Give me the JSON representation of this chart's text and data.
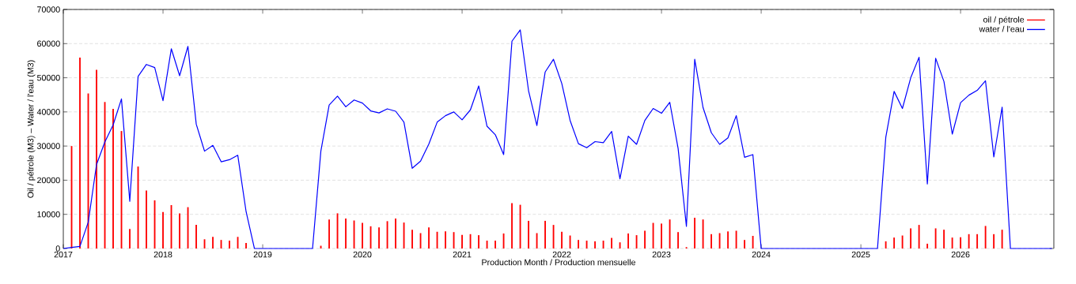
{
  "chart_data": {
    "type": "line",
    "xlabel": "Production Month / Production mensuelle",
    "ylabel": "Oil / pétrole (M3)  –  Water / l'eau (M3)",
    "x": [
      "2017-01",
      "2017-02",
      "2017-03",
      "2017-04",
      "2017-05",
      "2017-06",
      "2017-07",
      "2017-08",
      "2017-09",
      "2017-10",
      "2017-11",
      "2017-12",
      "2018-01",
      "2018-02",
      "2018-03",
      "2018-04",
      "2018-05",
      "2018-06",
      "2018-07",
      "2018-08",
      "2018-09",
      "2018-10",
      "2018-11",
      "2018-12",
      "2019-01",
      "2019-02",
      "2019-03",
      "2019-04",
      "2019-05",
      "2019-06",
      "2019-07",
      "2019-08",
      "2019-09",
      "2019-10",
      "2019-11",
      "2019-12",
      "2020-01",
      "2020-02",
      "2020-03",
      "2020-04",
      "2020-05",
      "2020-06",
      "2020-07",
      "2020-08",
      "2020-09",
      "2020-10",
      "2020-11",
      "2020-12",
      "2021-01",
      "2021-02",
      "2021-03",
      "2021-04",
      "2021-05",
      "2021-06",
      "2021-07",
      "2021-08",
      "2021-09",
      "2021-10",
      "2021-11",
      "2021-12",
      "2022-01",
      "2022-02",
      "2022-03",
      "2022-04",
      "2022-05",
      "2022-06",
      "2022-07",
      "2022-08",
      "2022-09",
      "2022-10",
      "2022-11",
      "2022-12",
      "2023-01",
      "2023-02",
      "2023-03",
      "2023-04",
      "2023-05",
      "2023-06",
      "2023-07",
      "2023-08",
      "2023-09",
      "2023-10",
      "2023-11",
      "2023-12",
      "2024-01",
      "2024-02",
      "2024-03",
      "2024-04",
      "2024-05",
      "2024-06",
      "2024-07",
      "2024-08",
      "2024-09",
      "2024-10",
      "2024-11",
      "2024-12",
      "2025-01",
      "2025-02",
      "2025-03",
      "2025-04",
      "2025-05",
      "2025-06",
      "2025-07",
      "2025-08",
      "2025-09",
      "2025-10",
      "2025-11",
      "2025-12",
      "2026-01",
      "2026-02",
      "2026-03",
      "2026-04",
      "2026-05",
      "2026-06",
      "2026-07",
      "2026-08",
      "2026-09",
      "2026-10",
      "2026-11",
      "2026-12"
    ],
    "series": [
      {
        "name": "oil / pétrole",
        "type": "bar",
        "color": "#ff0000",
        "values": [
          null,
          30000,
          55900,
          45400,
          52300,
          42900,
          40900,
          34400,
          5700,
          24000,
          17000,
          14100,
          10700,
          12700,
          10300,
          12100,
          6900,
          2700,
          3400,
          2500,
          2300,
          3400,
          1600,
          null,
          null,
          null,
          null,
          null,
          null,
          null,
          null,
          800,
          8500,
          10300,
          8800,
          8200,
          7500,
          6500,
          6200,
          8000,
          8800,
          7600,
          5500,
          4500,
          6200,
          4900,
          5000,
          4800,
          4000,
          4200,
          3900,
          2300,
          2300,
          4400,
          13300,
          12800,
          8100,
          4500,
          8100,
          6900,
          4900,
          3800,
          2500,
          2300,
          2100,
          2300,
          3100,
          1800,
          4400,
          3900,
          5200,
          7500,
          7300,
          8500,
          4800,
          400,
          9000,
          8500,
          4200,
          4500,
          5000,
          5200,
          2500,
          3700,
          null,
          null,
          null,
          null,
          null,
          null,
          null,
          null,
          null,
          null,
          null,
          null,
          null,
          null,
          null,
          2100,
          3200,
          3800,
          5900,
          6900,
          1400,
          5900,
          5500,
          3200,
          3300,
          4200,
          4200,
          6600,
          4200,
          5500,
          null,
          null,
          null,
          null,
          null,
          null
        ]
      },
      {
        "name": "water / l'eau",
        "color": "#0000ff",
        "values": [
          0,
          300,
          600,
          7700,
          24600,
          31200,
          36200,
          43800,
          13800,
          50400,
          53900,
          53000,
          43300,
          58500,
          50600,
          59200,
          36400,
          28500,
          30200,
          25400,
          26000,
          27300,
          10800,
          0,
          0,
          0,
          0,
          0,
          0,
          0,
          0,
          28500,
          42000,
          44600,
          41500,
          43500,
          42600,
          40300,
          39700,
          40900,
          40200,
          37000,
          23500,
          25600,
          30600,
          37000,
          38900,
          40000,
          37700,
          40600,
          47600,
          35800,
          33300,
          27500,
          60700,
          64000,
          46200,
          36000,
          51700,
          55400,
          48300,
          37500,
          30700,
          29500,
          31300,
          31000,
          34300,
          20400,
          32900,
          30500,
          37500,
          41000,
          39600,
          42800,
          29300,
          6500,
          55400,
          41300,
          33900,
          30500,
          32400,
          38900,
          26700,
          27500,
          0,
          0,
          0,
          0,
          0,
          0,
          0,
          0,
          0,
          0,
          0,
          0,
          0,
          0,
          0,
          32600,
          46000,
          41000,
          50000,
          56000,
          18900,
          55700,
          48900,
          33500,
          42700,
          44900,
          46300,
          49100,
          26800,
          41400,
          0,
          0,
          0,
          0,
          0,
          0
        ]
      }
    ],
    "xlim": [
      "2017-01",
      "2026-12-08"
    ],
    "xticks": [
      "2017",
      "2018",
      "2019",
      "2020",
      "2021",
      "2022",
      "2023",
      "2024",
      "2025",
      "2026"
    ],
    "ylim": [
      0,
      70000
    ],
    "yticks": [
      0,
      10000,
      20000,
      30000,
      40000,
      50000,
      60000,
      70000
    ],
    "grid": "y",
    "legend": "top right"
  }
}
